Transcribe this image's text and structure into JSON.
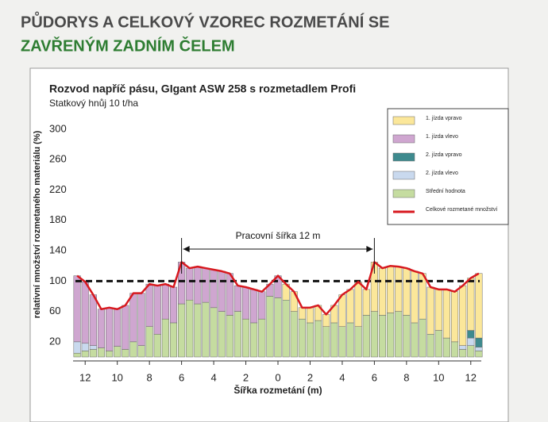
{
  "heading": {
    "line1": "PŮDORYS A CELKOVÝ VZOREC ROZMETÁNÍ SE",
    "line2": "ZAVŘENÝM ZADNÍM ČELEM"
  },
  "chart_data": {
    "type": "stacked-bar-line",
    "title": "Rozvod napříč pásu, GIgant ASW 258 s rozmetadlem Profi",
    "subtitle": "Statkový hnůj 10 t/ha",
    "x_label": "Šířka rozmetání (m)",
    "y_label": "relativní množství rozmetaného materiálu (%)",
    "annotation": {
      "text": "Pracovní šířka 12 m",
      "x": [
        -6,
        6
      ]
    },
    "reference_line": 100,
    "x": [
      -12.5,
      -12,
      -11.5,
      -11,
      -10.5,
      -10,
      -9.5,
      -9,
      -8.5,
      -8,
      -7.5,
      -7,
      -6.5,
      -6,
      -5.5,
      -5,
      -4.5,
      -4,
      -3.5,
      -3,
      -2.5,
      -2,
      -1.5,
      -1,
      -0.5,
      0,
      0.5,
      1,
      1.5,
      2,
      2.5,
      3,
      3.5,
      4,
      4.5,
      5,
      5.5,
      6,
      6.5,
      7,
      7.5,
      8,
      8.5,
      9,
      9.5,
      10,
      10.5,
      11,
      11.5,
      12,
      12.5
    ],
    "xlim": [
      -13,
      13
    ],
    "xticks": [
      {
        "value": -12,
        "label": "12"
      },
      {
        "value": -10,
        "label": "10"
      },
      {
        "value": -8,
        "label": "8"
      },
      {
        "value": -6,
        "label": "6"
      },
      {
        "value": -4,
        "label": "4"
      },
      {
        "value": -2,
        "label": "2"
      },
      0,
      2,
      4,
      6,
      8,
      10,
      12
    ],
    "ylim": [
      0,
      300
    ],
    "yticks": [
      20,
      60,
      100,
      140,
      180,
      220,
      260,
      300
    ],
    "series": [
      {
        "name": "1. jízda vpravo",
        "color": "#fbe79a",
        "values": [
          0,
          0,
          0,
          0,
          0,
          0,
          0,
          0,
          0,
          0,
          0,
          0,
          0,
          0,
          0,
          0,
          0,
          0,
          0,
          0,
          0,
          0,
          0,
          0,
          0,
          0,
          21,
          26,
          15,
          20,
          20,
          16,
          23,
          42,
          44,
          59,
          34,
          65,
          62,
          62,
          59,
          62,
          68,
          60,
          62,
          54,
          64,
          66,
          79,
          69,
          85
        ]
      },
      {
        "name": "1. jízda vlevo",
        "color": "#cfa6d0",
        "values": [
          87,
          81,
          67,
          51,
          57,
          49,
          58,
          64,
          69,
          56,
          64,
          46,
          47,
          55,
          42,
          49,
          45,
          50,
          53,
          55,
          34,
          42,
          44,
          36,
          16,
          29,
          0,
          0,
          0,
          0,
          0,
          0,
          0,
          0,
          0,
          0,
          0,
          0,
          0,
          0,
          0,
          0,
          0,
          0,
          0,
          0,
          0,
          0,
          0,
          0,
          0
        ]
      },
      {
        "name": "2. jízda vpravo",
        "color": "#3e8a8e",
        "values": [
          0,
          0,
          0,
          0,
          0,
          0,
          0,
          0,
          0,
          0,
          0,
          0,
          0,
          0,
          0,
          0,
          0,
          0,
          0,
          0,
          0,
          0,
          0,
          0,
          0,
          0,
          0,
          0,
          0,
          0,
          0,
          0,
          0,
          0,
          0,
          0,
          0,
          0,
          0,
          0,
          0,
          0,
          0,
          0,
          0,
          0,
          0,
          0,
          0,
          10,
          12
        ]
      },
      {
        "name": "2. jízda vlevo",
        "color": "#c9d9ee",
        "values": [
          15,
          10,
          5,
          0,
          0,
          0,
          0,
          0,
          0,
          0,
          0,
          0,
          0,
          0,
          0,
          0,
          0,
          0,
          0,
          0,
          0,
          0,
          0,
          0,
          0,
          0,
          0,
          0,
          0,
          0,
          0,
          0,
          0,
          0,
          0,
          0,
          0,
          0,
          0,
          0,
          0,
          0,
          0,
          0,
          0,
          0,
          0,
          0,
          5,
          10,
          5
        ]
      },
      {
        "name": "Střední hodnota",
        "color": "#c5dca0",
        "values": [
          5,
          8,
          10,
          12,
          8,
          14,
          10,
          20,
          15,
          40,
          30,
          50,
          45,
          70,
          75,
          70,
          72,
          65,
          60,
          55,
          60,
          50,
          45,
          50,
          80,
          78,
          75,
          60,
          50,
          45,
          48,
          40,
          45,
          40,
          45,
          40,
          55,
          60,
          55,
          58,
          60,
          55,
          45,
          50,
          30,
          35,
          25,
          20,
          10,
          15,
          8
        ]
      },
      {
        "name": "Celkové rozmetané množství",
        "color": "#d7191f",
        "kind": "line",
        "values": [
          107,
          99,
          82,
          63,
          65,
          63,
          68,
          84,
          84,
          96,
          94,
          96,
          92,
          125,
          117,
          119,
          117,
          115,
          113,
          110,
          94,
          92,
          89,
          86,
          96,
          107,
          96,
          86,
          65,
          65,
          68,
          56,
          68,
          82,
          89,
          99,
          89,
          125,
          117,
          120,
          119,
          117,
          113,
          110,
          92,
          89,
          89,
          86,
          94,
          104,
          110
        ]
      }
    ]
  }
}
